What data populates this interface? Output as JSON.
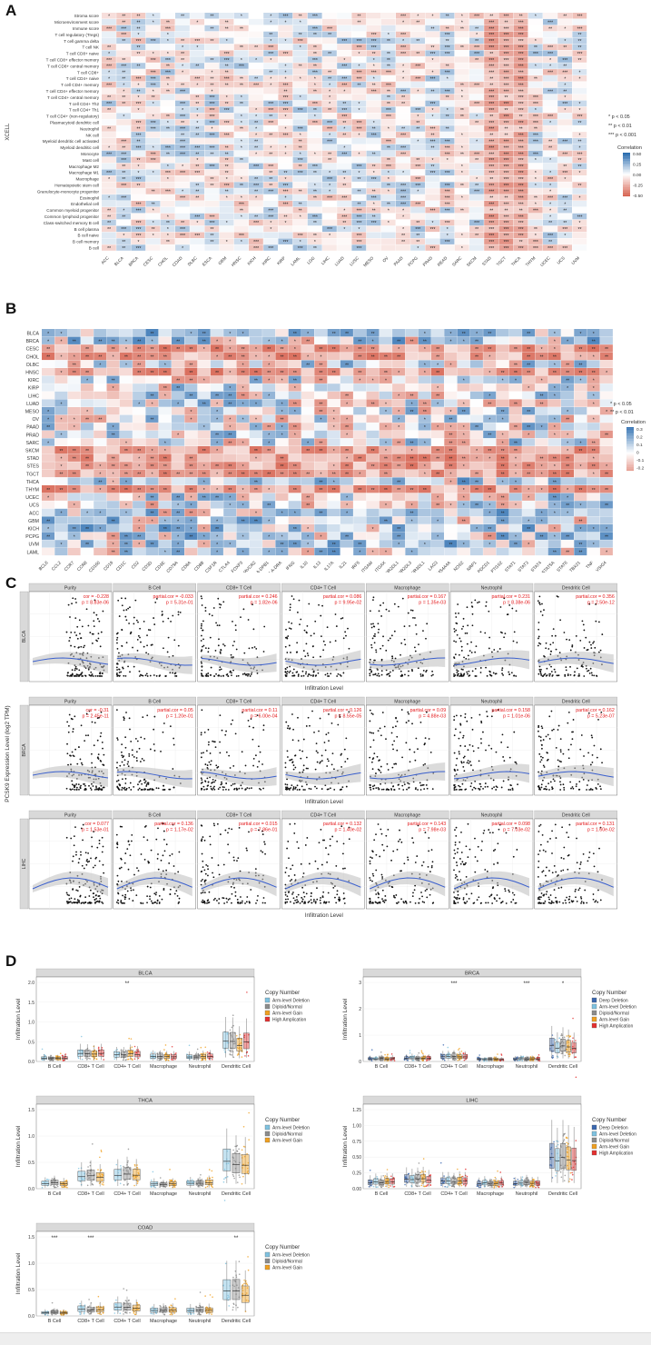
{
  "panels": {
    "a": "A",
    "b": "B",
    "c": "C",
    "d": "D"
  },
  "colors": {
    "pos": "#2166ac",
    "neg": "#d6604d",
    "scatter_line": "#3a5fcd",
    "stat": "#e41a1c",
    "strip": "#d9d9d9"
  },
  "chart_data": [
    {
      "id": "A",
      "type": "heatmap",
      "ylabel": "XCELL",
      "rows": [
        "Stroma score",
        "Microenvironment score",
        "Immune score",
        "T cell regulatory (Tregs)",
        "T cell gamma delta",
        "T cell NK",
        "T cell CD8+ naive",
        "T cell CD8+ effector memory",
        "T cell CD8+ central memory",
        "T cell CD8+",
        "T cell CD4+ naive",
        "T cell CD4+ memory",
        "T cell CD4+ effector memory",
        "T cell CD4+ central memory",
        "T cell CD4+ Th2",
        "T cell CD4+ Th1",
        "T cell CD4+ (non-regulatory)",
        "Plasmacytoid dendritic cell",
        "Neutrophil",
        "NK cell",
        "Myeloid dendritic cell activated",
        "Myeloid dendritic cell",
        "Monocyte",
        "Mast cell",
        "Macrophage M2",
        "Macrophage M1",
        "Macrophage",
        "Hematopoietic stem cell",
        "Granulocyte-monocyte progenitor",
        "Eosinophil",
        "Endothelial cell",
        "Common myeloid progenitor",
        "Common lymphoid progenitor",
        "Class-switched memory B cell",
        "B cell plasma",
        "B cell naive",
        "B cell memory",
        "B cell"
      ],
      "cols": [
        "ACC",
        "BLCA",
        "BRCA",
        "CESC",
        "CHOL",
        "COAD",
        "DLBC",
        "ESCA",
        "GBM",
        "HNSC",
        "KICH",
        "KIRC",
        "KIRP",
        "LAML",
        "LGG",
        "LIHC",
        "LUAD",
        "LUSC",
        "MESO",
        "OV",
        "PAAD",
        "PCPG",
        "PRAD",
        "READ",
        "SARC",
        "SKCM",
        "STAD",
        "TGCT",
        "THCA",
        "THYM",
        "UCEC",
        "UCS",
        "UVM"
      ],
      "legend": {
        "title": "Correlation",
        "ticks": [
          "0.50",
          "0.25",
          "0.00",
          "-0.25",
          "-0.50"
        ],
        "notes": [
          "* p < 0.05",
          "** p < 0.01",
          "*** p < 0.001"
        ]
      }
    },
    {
      "id": "B",
      "type": "heatmap",
      "rows": [
        "BLCA",
        "BRCA",
        "CESC",
        "CHOL",
        "DLBC",
        "HNSC",
        "KIRC",
        "KIRP",
        "LIHC",
        "LUAD",
        "MESO",
        "OV",
        "PAAD",
        "PRAD",
        "SARC",
        "SKCM",
        "STAD",
        "STES",
        "TGCT",
        "THCA",
        "THYM",
        "UCEC",
        "UCS",
        "ACC",
        "GBM",
        "KICH",
        "PCPG",
        "UVM",
        "LAML"
      ],
      "cols": [
        "BCL6",
        "CCL2",
        "CCR7",
        "CCR8",
        "CD160",
        "CD19",
        "CD1C",
        "CD2",
        "CD3D",
        "CD3E",
        "CD79A",
        "CD8A",
        "CD8B",
        "CSF1R",
        "CTLA4",
        "FOXP3",
        "HAVCR2",
        "HLA-DPB1",
        "HLA-DRA",
        "IFNG",
        "IL10",
        "IL13",
        "IL17A",
        "IL21",
        "IRF5",
        "ITGAM",
        "ITGAX",
        "KIR2DL1",
        "KIR2DL3",
        "KIR3DL1",
        "LAG3",
        "MS4A4A",
        "NOS2",
        "NRP1",
        "PDCD1",
        "PTGS2",
        "STAT1",
        "STAT3",
        "STAT4",
        "STAT5A",
        "STAT6",
        "TBX21",
        "TNF",
        "VSIG4"
      ],
      "legend": {
        "title": "Correlation",
        "ticks": [
          "0.3",
          "0.2",
          "0.1",
          "0",
          "-0.1",
          "-0.2"
        ],
        "notes": [
          "* p < 0.05",
          "** p < 0.01"
        ]
      }
    },
    {
      "id": "C",
      "type": "scatter",
      "xlabel": "Infiltration Level",
      "ylabel": "PCSK9 Expression Level (log2 TPM)",
      "cells": [
        "Purity",
        "B Cell",
        "CD8+ T Cell",
        "CD4+ T Cell",
        "Macrophage",
        "Neutrophil",
        "Dendritic Cell"
      ],
      "rows": [
        {
          "cancer": "BLCA",
          "stats": [
            [
              "cor = -0.228",
              "p = 8.83e-06"
            ],
            [
              "partial.cor = -0.033",
              "p = 5.31e-01"
            ],
            [
              "partial.cor = 0.246",
              "p = 1.82e-06"
            ],
            [
              "partial.cor = 0.086",
              "p = 9.95e-02"
            ],
            [
              "partial.cor = 0.167",
              "p = 1.35e-03"
            ],
            [
              "partial.cor = 0.231",
              "p = 8.38e-06"
            ],
            [
              "partial.cor = 0.356",
              "p = 2.50e-12"
            ]
          ]
        },
        {
          "cancer": "BRCA",
          "stats": [
            [
              "cor = -0.31",
              "p = 2.45e-11"
            ],
            [
              "partial.cor = 0.05",
              "p = 1.20e-01"
            ],
            [
              "partial.cor = 0.11",
              "p = 6.00e-04"
            ],
            [
              "partial.cor = 0.126",
              "p = 8.55e-05"
            ],
            [
              "partial.cor = 0.09",
              "p = 4.88e-03"
            ],
            [
              "partial.cor = 0.158",
              "p = 1.01e-06"
            ],
            [
              "partial.cor = 0.162",
              "p = 5.23e-07"
            ]
          ]
        },
        {
          "cancer": "LIHC",
          "stats": [
            [
              "cor = 0.077",
              "p = 1.53e-01"
            ],
            [
              "partial.cor = 0.136",
              "p = 1.17e-02"
            ],
            [
              "partial.cor = 0.015",
              "p = 7.86e-01"
            ],
            [
              "partial.cor = 0.132",
              "p = 1.40e-02"
            ],
            [
              "partial.cor = 0.143",
              "p = 7.98e-03"
            ],
            [
              "partial.cor = 0.098",
              "p = 7.03e-02"
            ],
            [
              "partial.cor = 0.131",
              "p = 1.60e-02"
            ]
          ]
        }
      ]
    },
    {
      "id": "D",
      "type": "box",
      "ylabel": "Infiltration Level",
      "categories": [
        "B Cell",
        "CD8+ T Cell",
        "CD4+ T Cell",
        "Macrophage",
        "Neutrophil",
        "Dendritic Cell"
      ],
      "legend_title": "Copy Number",
      "plots": [
        {
          "title": "BLCA",
          "ymax": 2.0,
          "yticks": [
            "0.0",
            "0.5",
            "1.0",
            "1.5",
            "2.0"
          ],
          "groups": [
            "Arm-level Deletion",
            "Diploid/Normal",
            "Arm-level Gain",
            "High Amplication"
          ],
          "medians": [
            0.08,
            0.18,
            0.17,
            0.12,
            0.12,
            0.45
          ],
          "sig": [
            "",
            "",
            "**",
            "",
            "",
            ""
          ]
        },
        {
          "title": "BRCA",
          "ymax": 3.0,
          "yticks": [
            "0",
            "1",
            "2",
            "3"
          ],
          "groups": [
            "Deep Deletion",
            "Arm-level Deletion",
            "Diploid/Normal",
            "Arm-level Gain",
            "High Amplication"
          ],
          "medians": [
            0.1,
            0.12,
            0.18,
            0.08,
            0.1,
            0.55
          ],
          "sig": [
            "",
            "",
            "***",
            "",
            "***",
            "*"
          ]
        },
        {
          "title": "THCA",
          "ymax": 1.5,
          "yticks": [
            "0.0",
            "0.5",
            "1.0",
            "1.5"
          ],
          "groups": [
            "Arm-level Deletion",
            "Diploid/Normal",
            "Arm-level Gain"
          ],
          "medians": [
            0.1,
            0.22,
            0.25,
            0.08,
            0.1,
            0.48
          ],
          "sig": [
            "",
            "",
            "",
            "",
            "",
            ""
          ]
        },
        {
          "title": "LIHC",
          "ymax": 1.25,
          "yticks": [
            "0.00",
            "0.25",
            "0.50",
            "0.75",
            "1.00",
            "1.25"
          ],
          "groups": [
            "Deep Deletion",
            "Arm-level Deletion",
            "Diploid/Normal",
            "Arm-level Gain",
            "High Amplication"
          ],
          "medians": [
            0.1,
            0.15,
            0.12,
            0.08,
            0.09,
            0.45
          ],
          "sig": [
            "",
            "",
            "",
            "",
            "",
            ""
          ]
        },
        {
          "title": "COAD",
          "ymax": 1.5,
          "yticks": [
            "0.0",
            "0.5",
            "1.0",
            "1.5"
          ],
          "groups": [
            "Arm-level Deletion",
            "Diploid/Normal",
            "Arm-level Gain"
          ],
          "medians": [
            0.06,
            0.12,
            0.15,
            0.1,
            0.1,
            0.42
          ],
          "sig": [
            "***",
            "***",
            "",
            "",
            "",
            "**"
          ]
        }
      ],
      "group_colors": {
        "Deep Deletion": "#3b68b0",
        "Arm-level Deletion": "#7fc2e0",
        "Diploid/Normal": "#8c8c8c",
        "Arm-level Gain": "#f0a020",
        "High Amplication": "#e33030"
      }
    }
  ]
}
